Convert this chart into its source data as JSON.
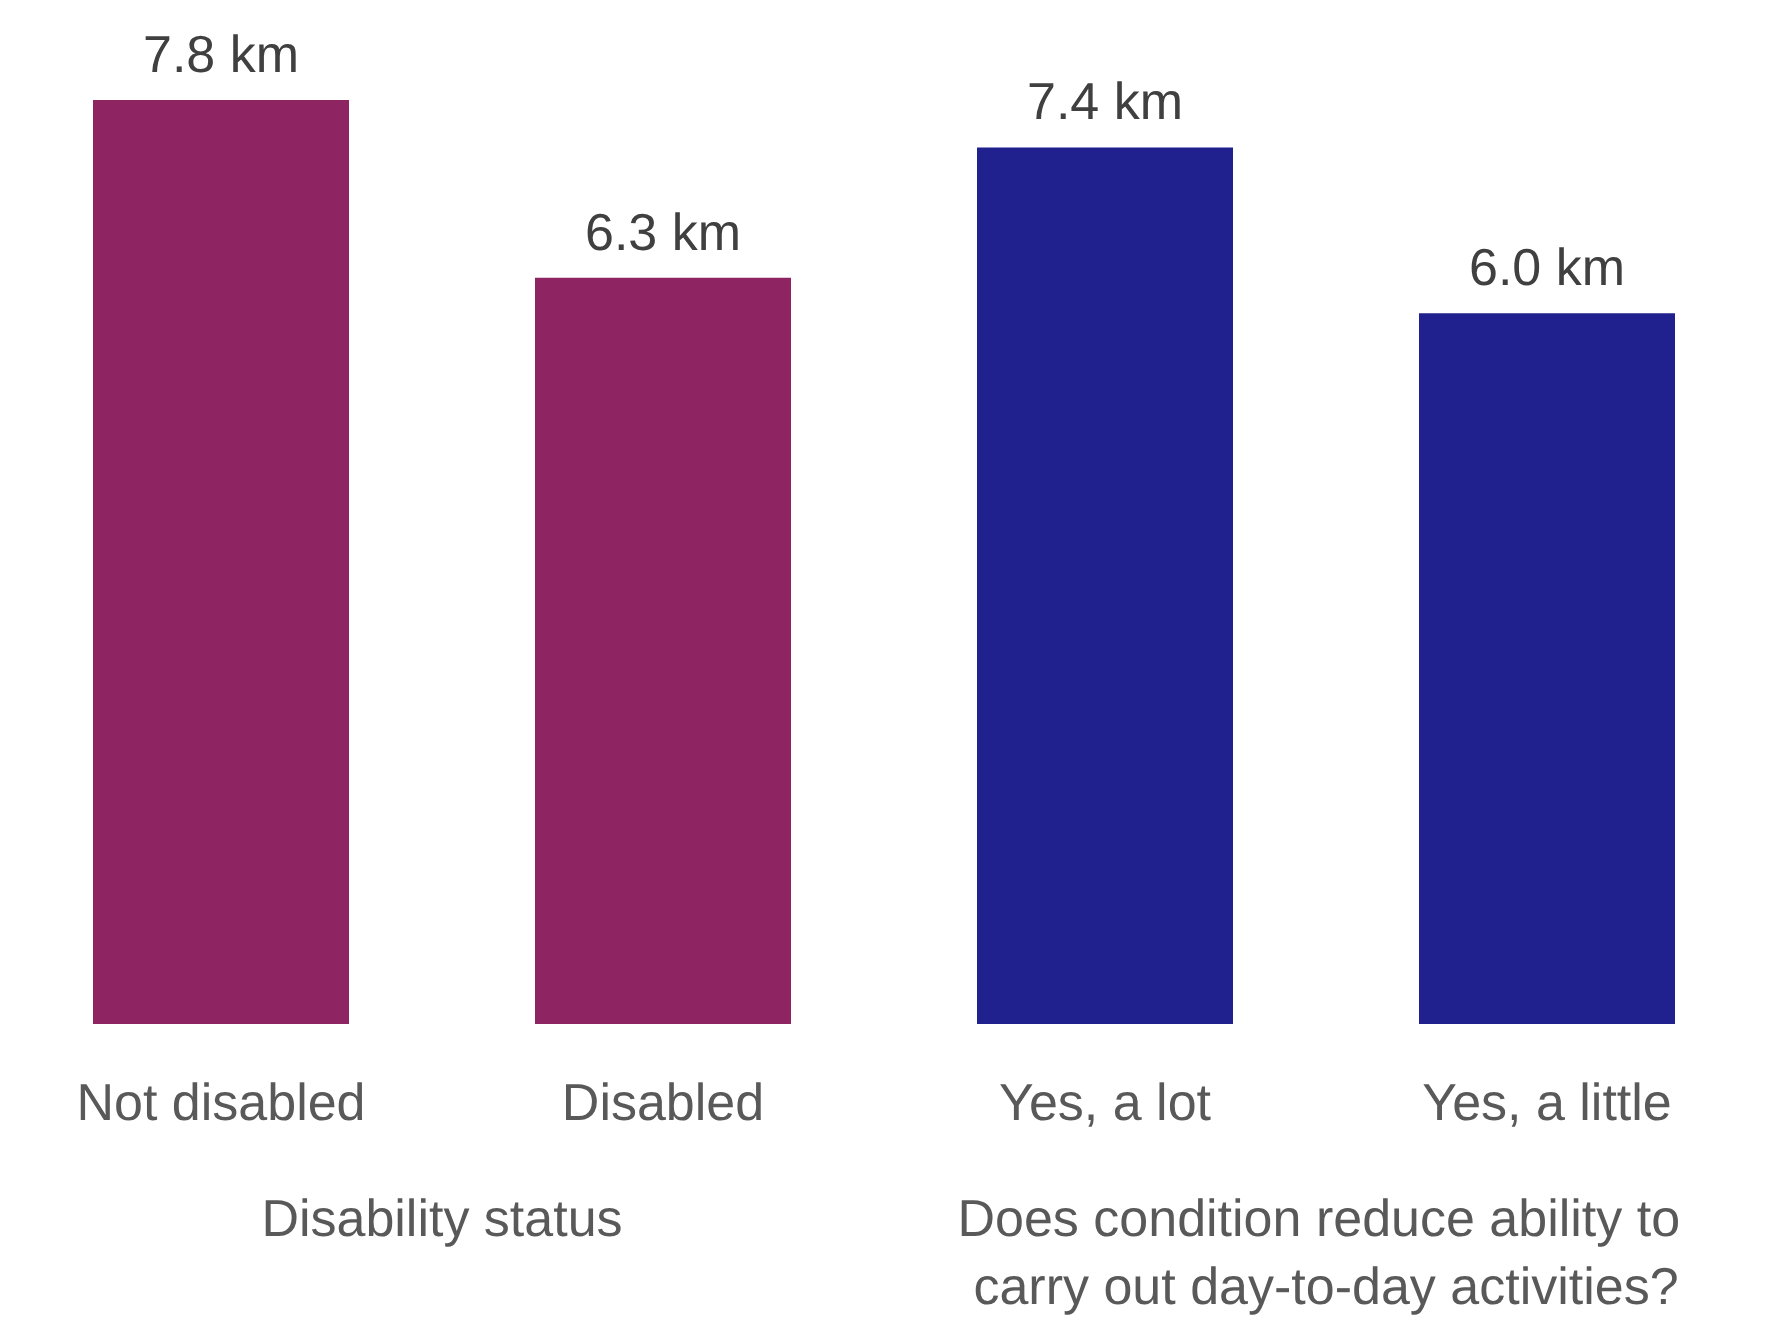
{
  "chart_data": {
    "type": "bar",
    "categories": [
      "Not disabled",
      "Disabled",
      "Yes, a lot",
      "Yes, a little"
    ],
    "values": [
      7.8,
      6.3,
      7.4,
      6.0
    ],
    "colors": [
      "#8e2462",
      "#8e2462",
      "#21208f",
      "#21208f"
    ],
    "value_labels": [
      "7.8 km",
      "6.3 km",
      "7.4 km",
      "6.0 km"
    ],
    "annotations": [
      "Disability status",
      "Does condition reduce ability to carry out day-to-day activities?"
    ]
  }
}
